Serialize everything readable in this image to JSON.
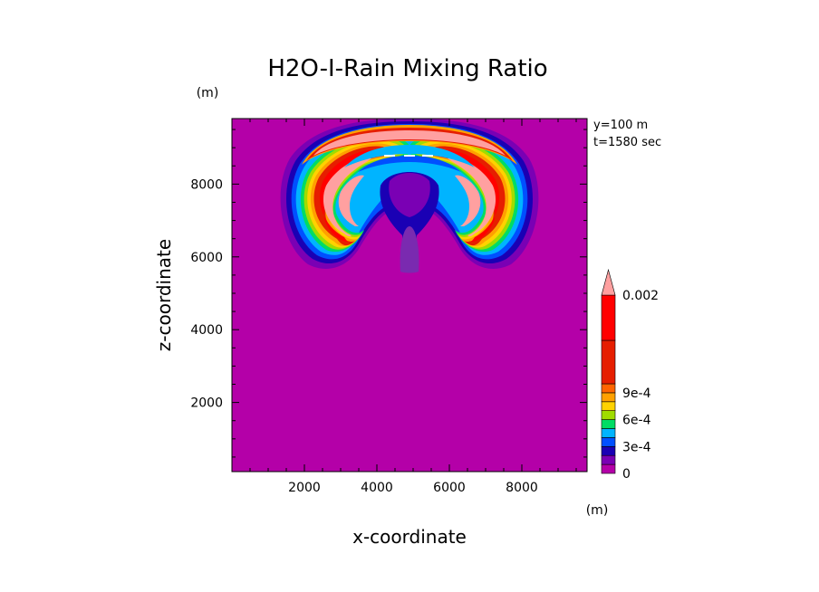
{
  "chart_data": {
    "type": "heatmap",
    "title": "H2O-I-Rain Mixing Ratio",
    "xlabel": "x-coordinate",
    "ylabel": "z-coordinate",
    "x_unit": "(m)",
    "y_unit": "(m)",
    "info": [
      "y=100 m",
      "t=1580 sec"
    ],
    "xlim": [
      0,
      9800
    ],
    "ylim": [
      100,
      9800
    ],
    "x_ticks": [
      2000,
      4000,
      6000,
      8000
    ],
    "y_ticks": [
      2000,
      4000,
      6000,
      8000
    ],
    "x_tick_labels": [
      "2000",
      "4000",
      "6000",
      "8000"
    ],
    "y_tick_labels": [
      "2000",
      "4000",
      "6000",
      "8000"
    ],
    "background_color": "#b400a8",
    "colorbar": {
      "levels": [
        0,
        0.0001,
        0.0002,
        0.0003,
        0.0004,
        0.0005,
        0.0006,
        0.0007,
        0.0008,
        0.0009,
        0.001,
        0.0015,
        0.002
      ],
      "colors": [
        "#b400a8",
        "#7a00b4",
        "#1a00b4",
        "#0050ff",
        "#00b4ff",
        "#00dc64",
        "#a0dc00",
        "#ffd200",
        "#ffa000",
        "#ff6400",
        "#e61e00",
        "#ff0000",
        "#ffa0a0"
      ],
      "tick_labels": [
        {
          "level": 0,
          "label": "0"
        },
        {
          "level": 0.0003,
          "label": "3e-4"
        },
        {
          "level": 0.0006,
          "label": "6e-4"
        },
        {
          "level": 0.0009,
          "label": "9e-4"
        },
        {
          "level": 0.002,
          "label": "0.002"
        }
      ],
      "extend": "max"
    },
    "field_description": "Twin mushroom-shaped rain plume: two curled lobes centered near x=3000 and x=7000 m between z=5700 and 9800 m, peak values above 0.002 in lobe cores, lower values in central stem reaching z=5600 m"
  }
}
